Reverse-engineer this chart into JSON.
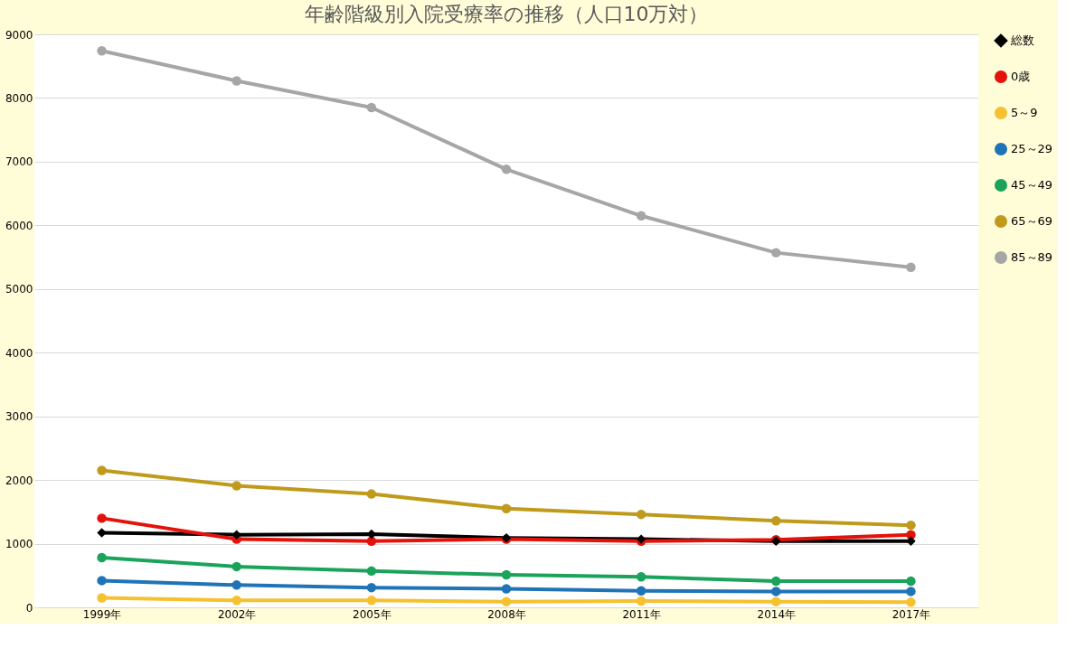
{
  "chart_data": {
    "type": "line",
    "title": "年齢階級別入院受療率の推移（人口10万対）",
    "categories": [
      "1999年",
      "2002年",
      "2005年",
      "2008年",
      "2011年",
      "2014年",
      "2017年"
    ],
    "ylim": [
      0,
      9000
    ],
    "yticks": [
      0,
      1000,
      2000,
      3000,
      4000,
      5000,
      6000,
      7000,
      8000,
      9000
    ],
    "grid": "y",
    "legend": "right",
    "series": [
      {
        "name": "総数",
        "color": "#000000",
        "marker": "diamond",
        "values": [
          1170,
          1140,
          1150,
          1090,
          1070,
          1040,
          1040
        ]
      },
      {
        "name": "0歳",
        "color": "#e3120b",
        "marker": "circle",
        "values": [
          1400,
          1070,
          1040,
          1070,
          1040,
          1060,
          1140
        ]
      },
      {
        "name": "5～9",
        "color": "#f5c12e",
        "marker": "circle",
        "values": [
          150,
          110,
          110,
          90,
          100,
          90,
          80
        ]
      },
      {
        "name": "25～29",
        "color": "#1f74b8",
        "marker": "circle",
        "values": [
          420,
          350,
          310,
          290,
          260,
          250,
          250
        ]
      },
      {
        "name": "45～49",
        "color": "#1aa35a",
        "marker": "circle",
        "values": [
          780,
          640,
          570,
          510,
          480,
          410,
          410
        ]
      },
      {
        "name": "65～69",
        "color": "#bf9a1b",
        "marker": "circle",
        "values": [
          2150,
          1910,
          1780,
          1550,
          1460,
          1360,
          1290
        ]
      },
      {
        "name": "85～89",
        "color": "#a6a6a6",
        "marker": "circle",
        "values": [
          8740,
          8270,
          7850,
          6880,
          6150,
          5570,
          5340
        ]
      }
    ]
  }
}
